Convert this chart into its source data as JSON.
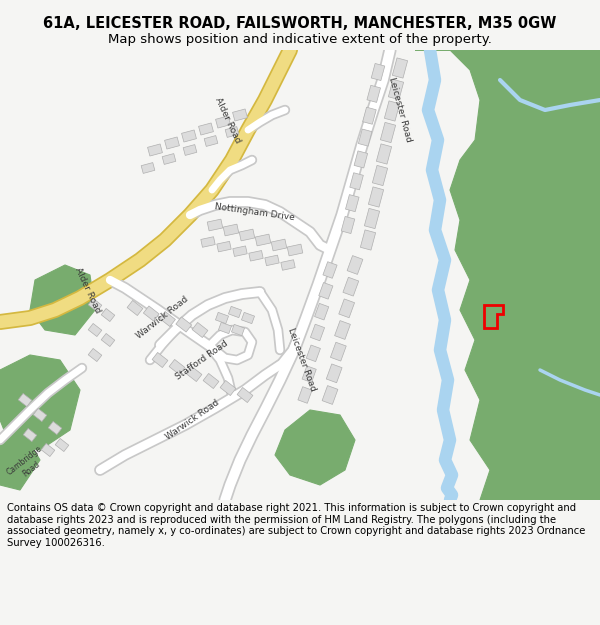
{
  "title_line1": "61A, LEICESTER ROAD, FAILSWORTH, MANCHESTER, M35 0GW",
  "title_line2": "Map shows position and indicative extent of the property.",
  "footer": "Contains OS data © Crown copyright and database right 2021. This information is subject to Crown copyright and database rights 2023 and is reproduced with the permission of HM Land Registry. The polygons (including the associated geometry, namely x, y co-ordinates) are subject to Crown copyright and database rights 2023 Ordnance Survey 100026316.",
  "bg_color": "#f5f5f3",
  "map_bg": "#ffffff",
  "green_color": "#78ac6e",
  "road_fill": "#ffffff",
  "road_outline": "#c8c8c8",
  "alder_road_fill": "#f0dc82",
  "alder_road_outline": "#d4b840",
  "building_color": "#dcdcdc",
  "building_outline": "#b0b0b0",
  "water_color": "#aad4f0",
  "property_color": "#ee0000",
  "title_fontsize": 10.5,
  "subtitle_fontsize": 9.5,
  "footer_fontsize": 7.2
}
